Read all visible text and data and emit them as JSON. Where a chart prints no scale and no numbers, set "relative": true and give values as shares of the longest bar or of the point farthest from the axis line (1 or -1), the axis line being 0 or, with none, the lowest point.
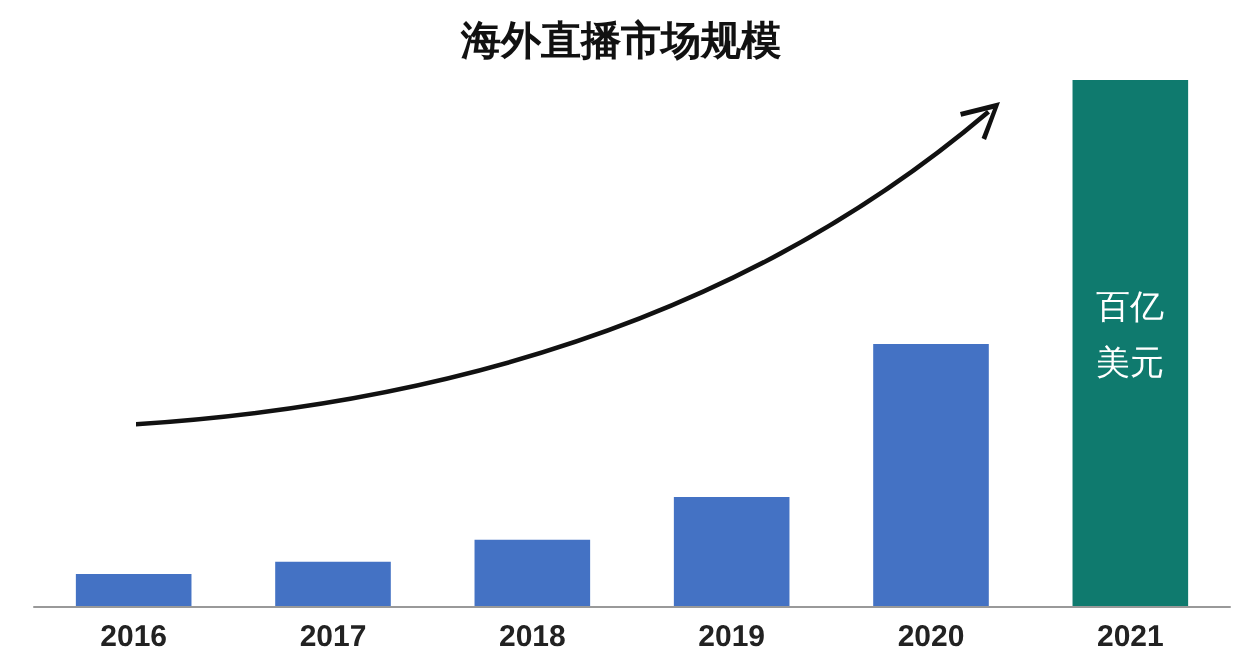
{
  "chart_data": {
    "type": "bar",
    "title": "海外直播市场规模",
    "categories": [
      "2016",
      "2017",
      "2018",
      "2019",
      "2020",
      "2021"
    ],
    "values": [
      0.061,
      0.084,
      0.126,
      0.207,
      0.498,
      1
    ],
    "colors": [
      "#4472c4",
      "#4472c4",
      "#4472c4",
      "#4472c4",
      "#4472c4",
      "#0f7a6e"
    ],
    "relative": true,
    "annotations": [
      "百亿美元"
    ]
  }
}
